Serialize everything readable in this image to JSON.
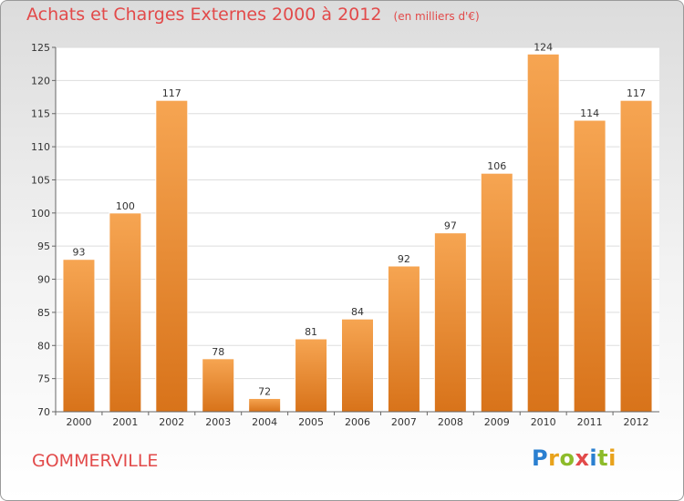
{
  "title": "Achats et Charges Externes 2000 à 2012",
  "unit": "(en milliers d'€)",
  "commune": "GOMMERVILLE",
  "brand": [
    "P",
    "r",
    "o",
    "x",
    "i",
    "t",
    "i"
  ],
  "colors": {
    "bar_top": "#f6a552",
    "bar_bottom": "#d8731a",
    "accent": "#e24a4a"
  },
  "chart_data": {
    "type": "bar",
    "categories": [
      "2000",
      "2001",
      "2002",
      "2003",
      "2004",
      "2005",
      "2006",
      "2007",
      "2008",
      "2009",
      "2010",
      "2011",
      "2012"
    ],
    "values": [
      93,
      100,
      117,
      78,
      72,
      81,
      84,
      92,
      97,
      106,
      124,
      114,
      117
    ],
    "ylim": [
      70,
      125
    ],
    "yticks": [
      70,
      75,
      80,
      85,
      90,
      95,
      100,
      105,
      110,
      115,
      120,
      125
    ],
    "grid": true,
    "xlabel": "",
    "ylabel": ""
  }
}
